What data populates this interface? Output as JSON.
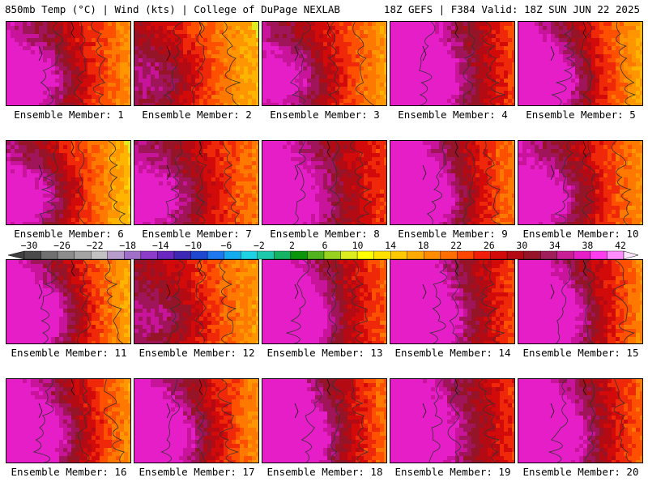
{
  "header": {
    "title": "850mb Temp (°C) | Wind (kts) | College of DuPage NEXLAB",
    "valid": "18Z GEFS | F384 Valid: 18Z SUN JUN 22 2025"
  },
  "members": [
    {
      "label": "Ensemble Member: 1",
      "warm": 0.55,
      "west_hot": 0.7,
      "east_cool": 0.35
    },
    {
      "label": "Ensemble Member: 2",
      "warm": 0.4,
      "west_hot": 0.55,
      "east_cool": 0.85
    },
    {
      "label": "Ensemble Member: 3",
      "warm": 0.5,
      "west_hot": 0.65,
      "east_cool": 0.6
    },
    {
      "label": "Ensemble Member: 4",
      "warm": 0.75,
      "west_hot": 0.8,
      "east_cool": 0.2
    },
    {
      "label": "Ensemble Member: 5",
      "warm": 0.55,
      "west_hot": 0.9,
      "east_cool": 0.55
    },
    {
      "label": "Ensemble Member: 6",
      "warm": 0.45,
      "west_hot": 0.75,
      "east_cool": 0.8
    },
    {
      "label": "Ensemble Member: 7",
      "warm": 0.55,
      "west_hot": 0.6,
      "east_cool": 0.55
    },
    {
      "label": "Ensemble Member: 8",
      "warm": 0.7,
      "west_hot": 0.6,
      "east_cool": 0.25
    },
    {
      "label": "Ensemble Member: 9",
      "warm": 0.65,
      "west_hot": 0.85,
      "east_cool": 0.4
    },
    {
      "label": "Ensemble Member: 10",
      "warm": 0.55,
      "west_hot": 0.7,
      "east_cool": 0.55
    },
    {
      "label": "Ensemble Member: 11",
      "warm": 0.55,
      "west_hot": 0.9,
      "east_cool": 0.7
    },
    {
      "label": "Ensemble Member: 12",
      "warm": 0.45,
      "west_hot": 0.5,
      "east_cool": 0.55
    },
    {
      "label": "Ensemble Member: 13",
      "warm": 0.7,
      "west_hot": 0.8,
      "east_cool": 0.45
    },
    {
      "label": "Ensemble Member: 14",
      "warm": 0.75,
      "west_hot": 0.85,
      "east_cool": 0.25
    },
    {
      "label": "Ensemble Member: 15",
      "warm": 0.65,
      "west_hot": 0.9,
      "east_cool": 0.45
    },
    {
      "label": "Ensemble Member: 16",
      "warm": 0.6,
      "west_hot": 0.85,
      "east_cool": 0.6
    },
    {
      "label": "Ensemble Member: 17",
      "warm": 0.6,
      "west_hot": 0.8,
      "east_cool": 0.55
    },
    {
      "label": "Ensemble Member: 18",
      "warm": 0.7,
      "west_hot": 0.9,
      "east_cool": 0.3
    },
    {
      "label": "Ensemble Member: 19",
      "warm": 0.75,
      "west_hot": 0.7,
      "east_cool": 0.25
    },
    {
      "label": "Ensemble Member: 20",
      "warm": 0.7,
      "west_hot": 0.85,
      "east_cool": 0.3
    }
  ],
  "colorbar": {
    "tick_labels": [
      "−30",
      "−26",
      "−22",
      "−18",
      "−14",
      "−10",
      "−6",
      "−2",
      "2",
      "6",
      "10",
      "14",
      "18",
      "22",
      "26",
      "30",
      "34",
      "38",
      "42"
    ],
    "colors": [
      "#4a4a4a",
      "#707070",
      "#8c8c8c",
      "#a4a4a4",
      "#c2c2c2",
      "#b89ccc",
      "#a070c8",
      "#8c3cc8",
      "#6a28c0",
      "#3c28b4",
      "#1e48d2",
      "#1e78f0",
      "#14aaf0",
      "#1ed2e6",
      "#1ec8aa",
      "#14b464",
      "#0a960a",
      "#50b41e",
      "#96d21e",
      "#dcec1e",
      "#ffff00",
      "#ffe100",
      "#ffc800",
      "#ffaa00",
      "#ff8c00",
      "#ff6e00",
      "#ff4600",
      "#f01e0a",
      "#d20a0a",
      "#b40a14",
      "#961428",
      "#a01e5a",
      "#c81e96",
      "#e61ec8",
      "#ff3cf0",
      "#ff8cff"
    ]
  }
}
